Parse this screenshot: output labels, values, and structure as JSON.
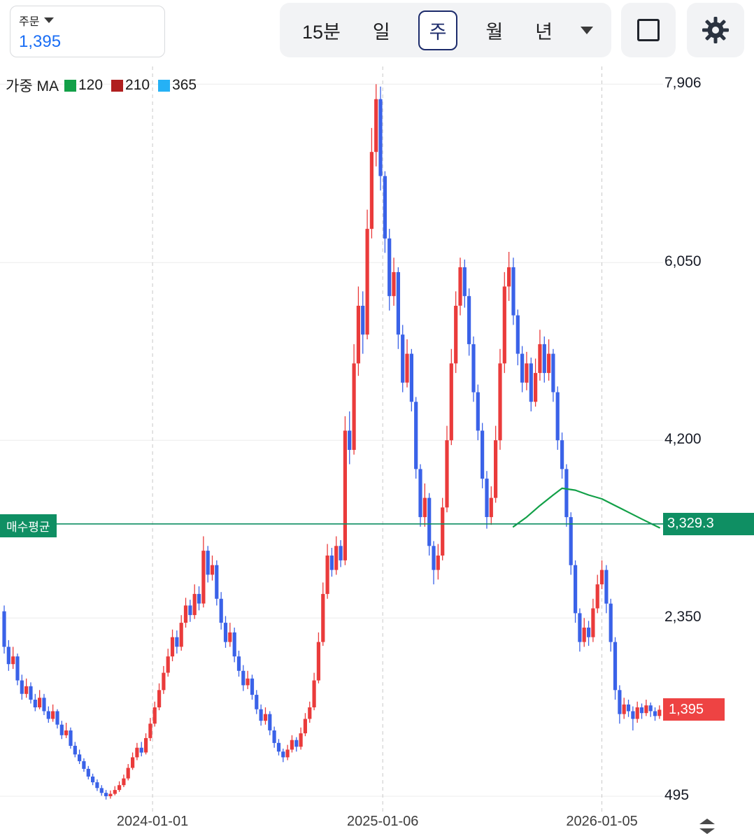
{
  "header": {
    "order": {
      "label": "주문",
      "value": "1,395"
    },
    "timeframes": [
      {
        "label": "15분",
        "selected": false
      },
      {
        "label": "일",
        "selected": false
      },
      {
        "label": "주",
        "selected": true
      },
      {
        "label": "월",
        "selected": false
      },
      {
        "label": "년",
        "selected": false
      }
    ],
    "icons": {
      "order_dropdown": "caret-down",
      "timeframe_dropdown": "caret-down",
      "fullscreen": "square-outline",
      "settings": "gear"
    }
  },
  "legend": {
    "title": "가중 MA",
    "items": [
      {
        "label": "120",
        "color": "#12a048"
      },
      {
        "label": "210",
        "color": "#b01f1f"
      },
      {
        "label": "365",
        "color": "#25b1f5"
      }
    ]
  },
  "colors": {
    "up": "#ea3b3b",
    "down": "#3a62e8",
    "buy_avg": "#0f8f63",
    "current_badge": "#ee4343",
    "grid": "#ececec",
    "grid_dash": "#c9c9c9"
  },
  "footer": {
    "scale_icon": "updown-arrows"
  },
  "chart_data": {
    "type": "candlestick",
    "timeframe": "weekly",
    "price_range": [
      335,
      8090
    ],
    "y_axis_ticks": [
      {
        "label": "7,906",
        "value": 7906
      },
      {
        "label": "6,050",
        "value": 6050
      },
      {
        "label": "4,200",
        "value": 4200
      },
      {
        "label": "2,350",
        "value": 2350
      },
      {
        "label": "495",
        "value": 495
      }
    ],
    "x_axis_ticks": [
      {
        "label": "2024-01-01",
        "index": 33.5
      },
      {
        "label": "2025-01-06",
        "index": 85.5
      },
      {
        "label": "2026-01-05",
        "index": 135
      }
    ],
    "buy_average": {
      "label": "매수평균",
      "value": 3329.3,
      "display": "3,329.3"
    },
    "current_price": {
      "value": 1395,
      "display": "1,395"
    },
    "ma_line": {
      "name": "가중 MA 120",
      "color": "#12a048",
      "points": [
        [
          115,
          3300
        ],
        [
          118,
          3400
        ],
        [
          121,
          3520
        ],
        [
          124,
          3630
        ],
        [
          126,
          3700
        ],
        [
          129,
          3680
        ],
        [
          132,
          3630
        ],
        [
          135,
          3590
        ],
        [
          138,
          3520
        ],
        [
          141,
          3450
        ],
        [
          144,
          3380
        ],
        [
          148,
          3290
        ]
      ]
    },
    "candles_format": [
      "open",
      "high",
      "low",
      "close"
    ],
    "candles": [
      [
        2420,
        2480,
        1980,
        2050
      ],
      [
        2050,
        2120,
        1800,
        1870
      ],
      [
        1870,
        2050,
        1820,
        1950
      ],
      [
        1950,
        1980,
        1650,
        1700
      ],
      [
        1700,
        1760,
        1500,
        1560
      ],
      [
        1560,
        1720,
        1520,
        1640
      ],
      [
        1640,
        1680,
        1460,
        1500
      ],
      [
        1500,
        1560,
        1380,
        1420
      ],
      [
        1420,
        1600,
        1400,
        1520
      ],
      [
        1520,
        1560,
        1340,
        1380
      ],
      [
        1380,
        1430,
        1260,
        1300
      ],
      [
        1300,
        1450,
        1270,
        1380
      ],
      [
        1380,
        1400,
        1200,
        1240
      ],
      [
        1240,
        1280,
        1090,
        1130
      ],
      [
        1130,
        1260,
        1100,
        1180
      ],
      [
        1180,
        1210,
        990,
        1020
      ],
      [
        1020,
        1060,
        900,
        930
      ],
      [
        930,
        980,
        830,
        860
      ],
      [
        860,
        890,
        750,
        780
      ],
      [
        780,
        810,
        670,
        700
      ],
      [
        700,
        730,
        610,
        640
      ],
      [
        640,
        670,
        550,
        580
      ],
      [
        580,
        610,
        500,
        530
      ],
      [
        530,
        560,
        460,
        495
      ],
      [
        495,
        555,
        470,
        520
      ],
      [
        520,
        600,
        505,
        560
      ],
      [
        560,
        650,
        540,
        610
      ],
      [
        610,
        720,
        590,
        680
      ],
      [
        680,
        830,
        660,
        790
      ],
      [
        790,
        950,
        770,
        900
      ],
      [
        900,
        1050,
        870,
        1000
      ],
      [
        1000,
        1060,
        910,
        950
      ],
      [
        950,
        1150,
        930,
        1100
      ],
      [
        1100,
        1310,
        1070,
        1250
      ],
      [
        1250,
        1480,
        1220,
        1420
      ],
      [
        1420,
        1670,
        1390,
        1600
      ],
      [
        1600,
        1850,
        1560,
        1780
      ],
      [
        1780,
        2030,
        1740,
        1950
      ],
      [
        1950,
        2230,
        1900,
        2150
      ],
      [
        2150,
        2220,
        1980,
        2050
      ],
      [
        2050,
        2380,
        2010,
        2300
      ],
      [
        2300,
        2560,
        2250,
        2480
      ],
      [
        2480,
        2540,
        2310,
        2380
      ],
      [
        2380,
        2700,
        2340,
        2600
      ],
      [
        2600,
        2680,
        2430,
        2500
      ],
      [
        2500,
        3200,
        2460,
        3050
      ],
      [
        3050,
        3100,
        2720,
        2800
      ],
      [
        2800,
        3000,
        2740,
        2900
      ],
      [
        2900,
        2950,
        2480,
        2550
      ],
      [
        2550,
        2620,
        2230,
        2300
      ],
      [
        2300,
        2370,
        2040,
        2100
      ],
      [
        2100,
        2300,
        2050,
        2200
      ],
      [
        2200,
        2250,
        1890,
        1950
      ],
      [
        1950,
        2010,
        1740,
        1800
      ],
      [
        1800,
        1860,
        1590,
        1650
      ],
      [
        1650,
        1800,
        1610,
        1720
      ],
      [
        1720,
        1760,
        1500,
        1550
      ],
      [
        1550,
        1600,
        1350,
        1400
      ],
      [
        1400,
        1450,
        1230,
        1280
      ],
      [
        1280,
        1420,
        1240,
        1350
      ],
      [
        1350,
        1380,
        1130,
        1180
      ],
      [
        1180,
        1220,
        1000,
        1050
      ],
      [
        1050,
        1090,
        920,
        960
      ],
      [
        960,
        990,
        850,
        900
      ],
      [
        900,
        1030,
        870,
        980
      ],
      [
        980,
        1130,
        950,
        1080
      ],
      [
        1080,
        1110,
        960,
        1010
      ],
      [
        1010,
        1210,
        980,
        1150
      ],
      [
        1150,
        1360,
        1120,
        1300
      ],
      [
        1300,
        1480,
        1260,
        1420
      ],
      [
        1420,
        1780,
        1390,
        1700
      ],
      [
        1700,
        2200,
        1670,
        2100
      ],
      [
        2100,
        2720,
        2060,
        2600
      ],
      [
        2600,
        3120,
        2550,
        3000
      ],
      [
        3000,
        3080,
        2780,
        2850
      ],
      [
        2850,
        3200,
        2800,
        3100
      ],
      [
        3100,
        3160,
        2880,
        2950
      ],
      [
        2950,
        4450,
        2900,
        4300
      ],
      [
        4300,
        4500,
        3950,
        4100
      ],
      [
        4100,
        5200,
        4050,
        5000
      ],
      [
        5000,
        5800,
        4870,
        5600
      ],
      [
        5600,
        5750,
        5100,
        5300
      ],
      [
        5300,
        6600,
        5250,
        6400
      ],
      [
        6400,
        7450,
        6300,
        7200
      ],
      [
        7200,
        7906,
        7050,
        7750
      ],
      [
        7750,
        7880,
        6800,
        6950
      ],
      [
        6950,
        7000,
        6150,
        6300
      ],
      [
        6300,
        6400,
        5550,
        5700
      ],
      [
        5700,
        6100,
        5600,
        5950
      ],
      [
        5950,
        6000,
        5150,
        5300
      ],
      [
        5300,
        5400,
        4700,
        4800
      ],
      [
        4800,
        5250,
        4750,
        5100
      ],
      [
        5100,
        5150,
        4500,
        4600
      ],
      [
        4600,
        4650,
        3800,
        3900
      ],
      [
        3900,
        3950,
        3300,
        3400
      ],
      [
        3400,
        3750,
        3300,
        3600
      ],
      [
        3600,
        3650,
        3000,
        3100
      ],
      [
        3100,
        3150,
        2700,
        2850
      ],
      [
        2850,
        3120,
        2750,
        3000
      ],
      [
        3000,
        3600,
        2950,
        3500
      ],
      [
        3500,
        4350,
        3450,
        4200
      ],
      [
        4200,
        5150,
        4150,
        5000
      ],
      [
        5000,
        5750,
        4900,
        5600
      ],
      [
        5600,
        6100,
        5500,
        6000
      ],
      [
        6000,
        6080,
        5580,
        5700
      ],
      [
        5700,
        5780,
        5080,
        5200
      ],
      [
        5200,
        5280,
        4600,
        4700
      ],
      [
        4700,
        4780,
        4200,
        4300
      ],
      [
        4300,
        4380,
        3700,
        3800
      ],
      [
        3800,
        3880,
        3280,
        3400
      ],
      [
        3400,
        3720,
        3320,
        3600
      ],
      [
        3600,
        4350,
        3550,
        4200
      ],
      [
        4200,
        5150,
        4100,
        5000
      ],
      [
        5000,
        5950,
        4900,
        5800
      ],
      [
        5800,
        6160,
        5650,
        6000
      ],
      [
        6000,
        6100,
        5400,
        5500
      ],
      [
        5500,
        5560,
        4980,
        5100
      ],
      [
        5100,
        5180,
        4700,
        4800
      ],
      [
        4800,
        5120,
        4720,
        5000
      ],
      [
        5000,
        5060,
        4500,
        4600
      ],
      [
        4600,
        5050,
        4550,
        4900
      ],
      [
        4900,
        5350,
        4820,
        5200
      ],
      [
        5200,
        5280,
        4800,
        4900
      ],
      [
        4900,
        5250,
        4820,
        5100
      ],
      [
        5100,
        5150,
        4600,
        4700
      ],
      [
        4700,
        4760,
        4100,
        4200
      ],
      [
        4200,
        4280,
        3800,
        3900
      ],
      [
        3900,
        3950,
        3300,
        3400
      ],
      [
        3400,
        3450,
        2800,
        2900
      ],
      [
        2900,
        2950,
        2300,
        2400
      ],
      [
        2400,
        2450,
        2000,
        2100
      ],
      [
        2100,
        2350,
        2050,
        2250
      ],
      [
        2250,
        2320,
        2060,
        2150
      ],
      [
        2150,
        2550,
        2100,
        2450
      ],
      [
        2450,
        2800,
        2400,
        2700
      ],
      [
        2700,
        2950,
        2650,
        2850
      ],
      [
        2850,
        2900,
        2400,
        2500
      ],
      [
        2500,
        2550,
        2000,
        2100
      ],
      [
        2100,
        2150,
        1500,
        1600
      ],
      [
        1600,
        1650,
        1250,
        1350
      ],
      [
        1350,
        1520,
        1300,
        1450
      ],
      [
        1450,
        1500,
        1320,
        1380
      ],
      [
        1380,
        1430,
        1180,
        1300
      ],
      [
        1300,
        1480,
        1260,
        1420
      ],
      [
        1420,
        1460,
        1300,
        1360
      ],
      [
        1360,
        1500,
        1330,
        1440
      ],
      [
        1440,
        1470,
        1320,
        1380
      ],
      [
        1380,
        1420,
        1280,
        1330
      ],
      [
        1330,
        1440,
        1300,
        1395
      ]
    ]
  }
}
